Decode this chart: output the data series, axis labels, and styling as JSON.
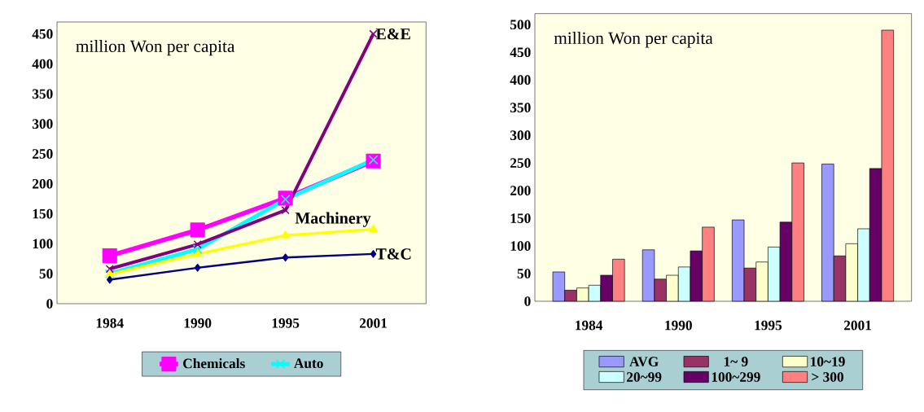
{
  "chart_data": [
    {
      "type": "line",
      "categories": [
        "1984",
        "1990",
        "1995",
        "2001"
      ],
      "series": [
        {
          "name": "Chemicals",
          "color": "#ff00ff",
          "marker": "square",
          "values": [
            80,
            123,
            176,
            238
          ]
        },
        {
          "name": "Auto",
          "color": "#00ffff",
          "marker": "cross",
          "values": [
            50,
            91,
            174,
            240
          ]
        },
        {
          "color": "#800080",
          "marker": "cross",
          "values": [
            58,
            99,
            156,
            450
          ]
        },
        {
          "color": "#ffff00",
          "marker": "triangle",
          "values": [
            49,
            83,
            114,
            124
          ]
        },
        {
          "color": "#000080",
          "marker": "diamond",
          "values": [
            40,
            60,
            77,
            83
          ]
        }
      ],
      "ylim": [
        0,
        470
      ],
      "yticks": [
        0,
        50,
        100,
        150,
        200,
        250,
        300,
        350,
        400,
        450
      ],
      "annotations": [
        "million Won per capita",
        {
          "text": "E&E",
          "x": "2001",
          "y": 450
        },
        {
          "text": "Machinery",
          "x": "2001",
          "y": 124
        },
        {
          "text": "T&C",
          "x": "2001",
          "y": 83
        }
      ],
      "legend": "bottom"
    },
    {
      "type": "bar",
      "categories": [
        "1984",
        "1990",
        "1995",
        "2001"
      ],
      "series": [
        {
          "name": "AVG",
          "color": "#9999ff",
          "values": [
            53,
            93,
            147,
            248
          ]
        },
        {
          "name": "1~ 9",
          "color": "#993366",
          "values": [
            20,
            40,
            60,
            82
          ]
        },
        {
          "name": "10~19",
          "color": "#ffffcc",
          "values": [
            24,
            47,
            71,
            104
          ]
        },
        {
          "name": "20~99",
          "color": "#ccffff",
          "values": [
            29,
            62,
            98,
            131
          ]
        },
        {
          "name": "100~299",
          "color": "#660066",
          "values": [
            47,
            91,
            143,
            240
          ]
        },
        {
          "name": "> 300",
          "color": "#ff8080",
          "values": [
            76,
            134,
            250,
            490
          ]
        }
      ],
      "ylim": [
        0,
        520
      ],
      "yticks": [
        0,
        50,
        100,
        150,
        200,
        250,
        300,
        350,
        400,
        450,
        500
      ],
      "annotations": [
        "million Won per capita"
      ],
      "legend": "bottom"
    }
  ]
}
